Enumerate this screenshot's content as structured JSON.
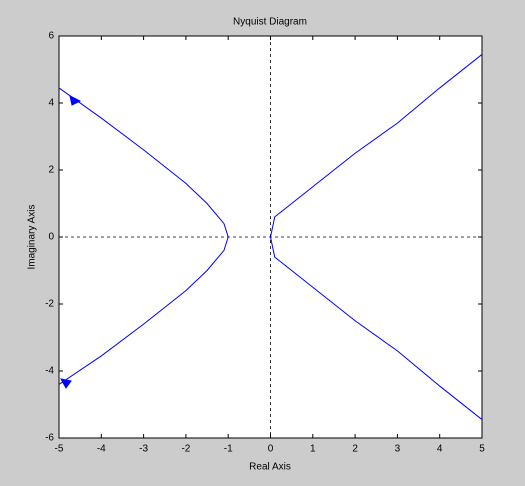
{
  "chart_data": {
    "type": "line",
    "title": "Nyquist Diagram",
    "xlabel": "Real Axis",
    "ylabel": "Imaginary Axis",
    "xlim": [
      -5,
      5
    ],
    "ylim": [
      -6,
      6
    ],
    "xticks": [
      -5,
      -4,
      -3,
      -2,
      -1,
      0,
      1,
      2,
      3,
      4,
      5
    ],
    "yticks": [
      -6,
      -4,
      -2,
      0,
      2,
      4,
      6
    ],
    "series": [
      {
        "color": "#0000ff",
        "x": [
          -5,
          -4,
          -3,
          -2,
          -1.5,
          -1.1,
          -1,
          -1.1,
          -1.5,
          -2,
          -3,
          -4,
          -5
        ],
        "values": [
          4.45,
          3.55,
          2.6,
          1.6,
          1.0,
          0.4,
          0,
          -0.4,
          -1.0,
          -1.6,
          -2.6,
          -3.55,
          -4.4
        ]
      },
      {
        "color": "#0000ff",
        "x": [
          5,
          4,
          3,
          2,
          1,
          0.4,
          0.1,
          0,
          0.1,
          0.4,
          1,
          2,
          3,
          4,
          5
        ],
        "values": [
          5.45,
          4.45,
          3.4,
          2.5,
          1.5,
          0.9,
          0.6,
          0,
          -0.6,
          -0.9,
          -1.5,
          -2.5,
          -3.4,
          -4.45,
          -5.45
        ]
      }
    ]
  }
}
